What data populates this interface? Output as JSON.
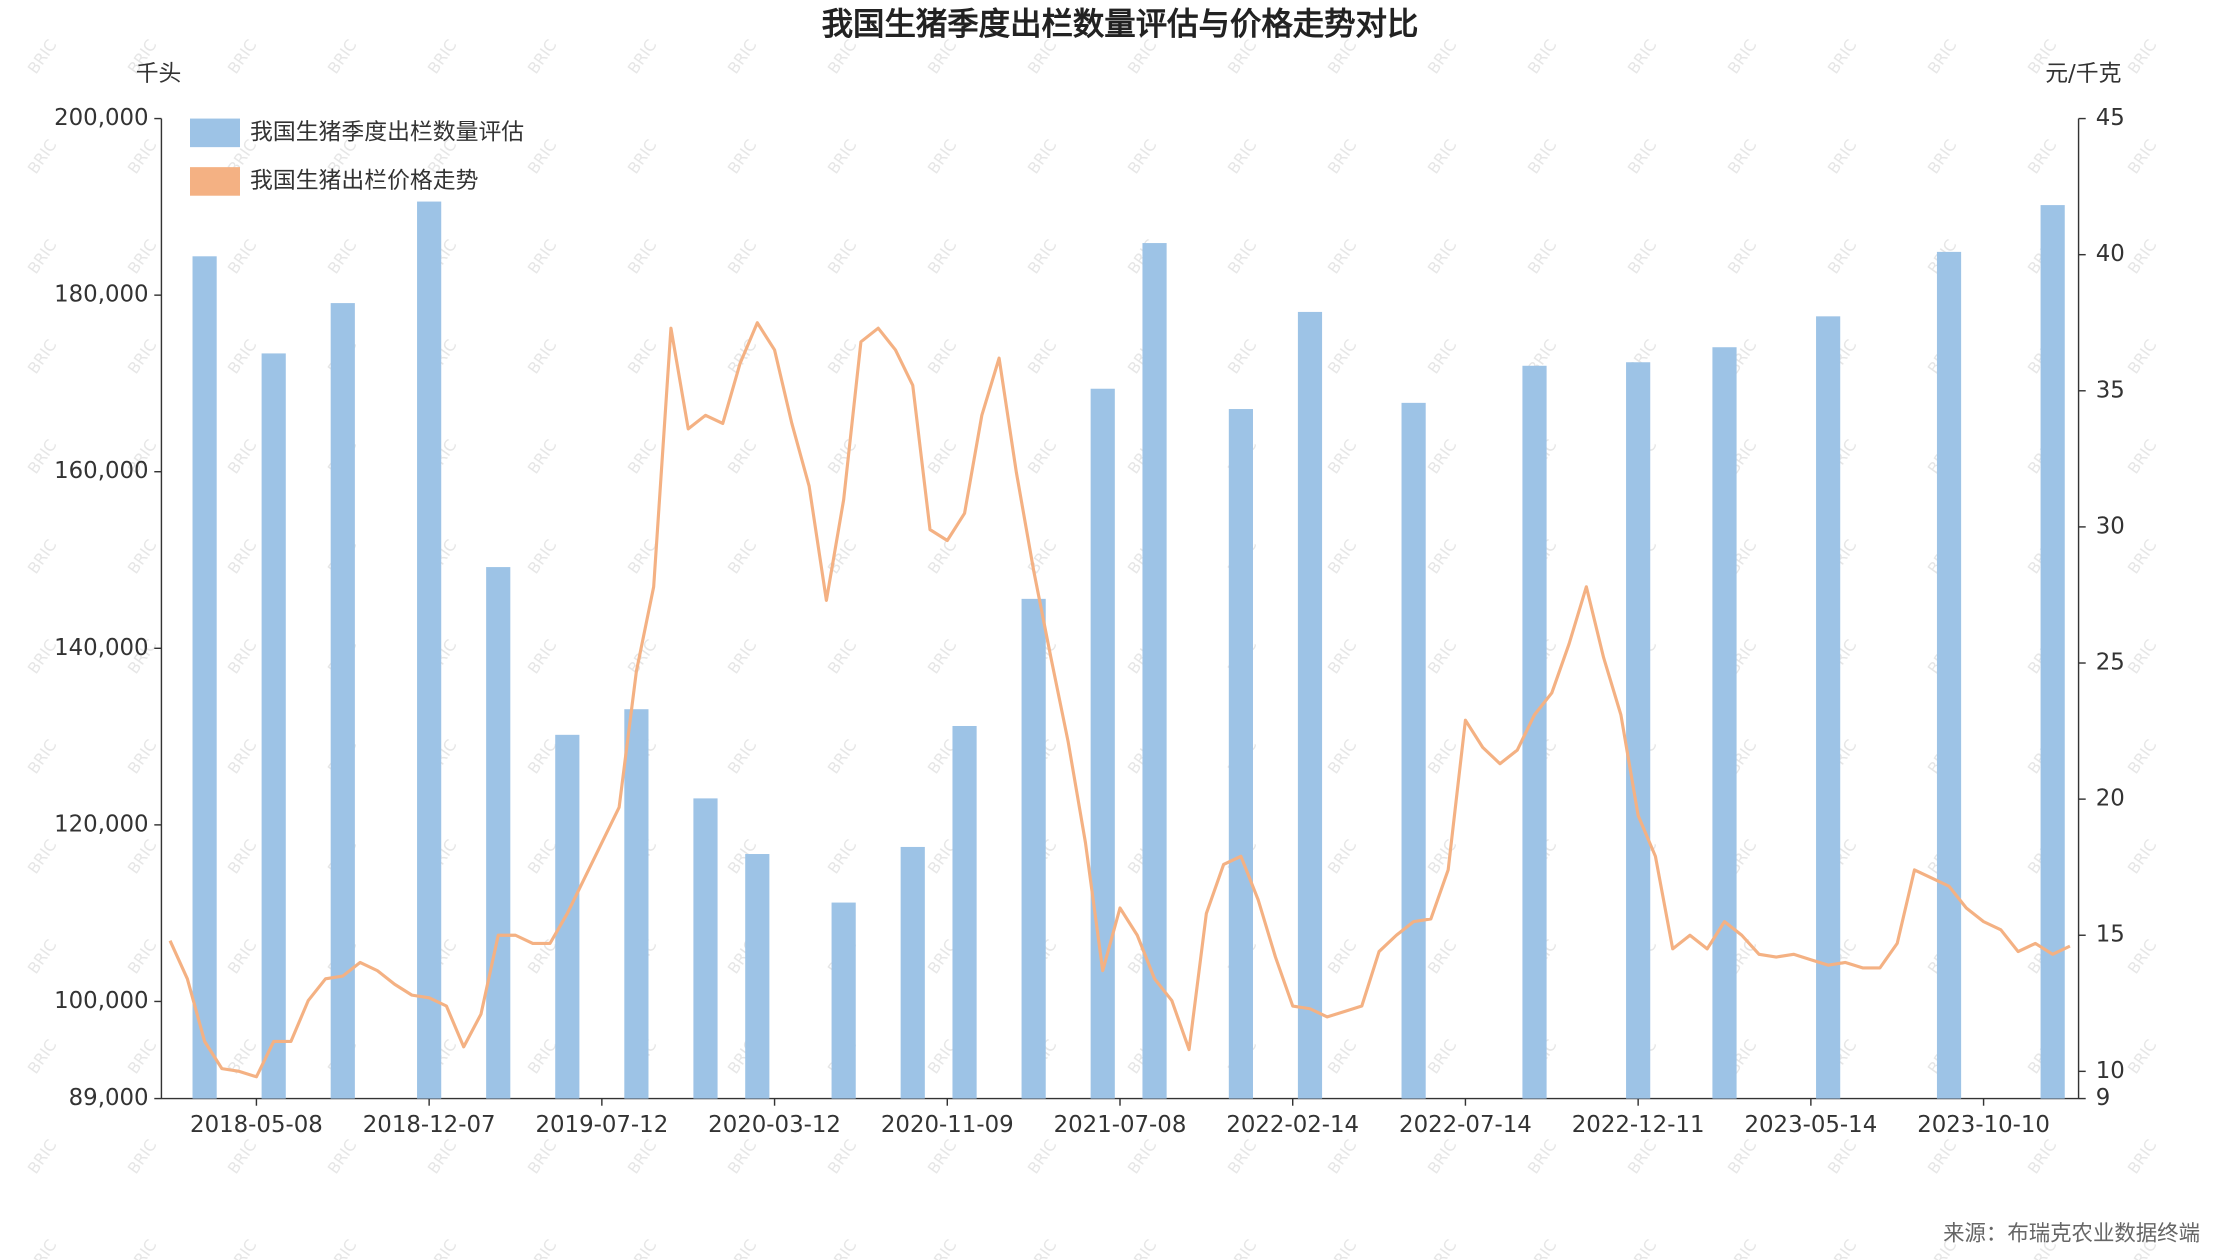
{
  "chart_data": {
    "type": "bar",
    "title": "我国生猪季度出栏数量评估与价格走势对比",
    "y_unit": "千头",
    "y2_unit": "元/千克",
    "source": "来源：布瑞克农业数据终端",
    "watermark": "BRIC",
    "legend_position": "top-left",
    "categories": [
      null,
      null,
      null,
      null,
      null,
      "2018-05-08",
      null,
      null,
      null,
      null,
      null,
      null,
      null,
      null,
      null,
      "2018-12-07",
      null,
      null,
      null,
      null,
      null,
      null,
      null,
      null,
      null,
      "2019-07-12",
      null,
      null,
      null,
      null,
      null,
      null,
      null,
      null,
      null,
      "2020-03-12",
      null,
      null,
      null,
      null,
      null,
      null,
      null,
      null,
      null,
      "2020-11-09",
      null,
      null,
      null,
      null,
      null,
      null,
      null,
      null,
      null,
      "2021-07-08",
      null,
      null,
      null,
      null,
      null,
      null,
      null,
      null,
      null,
      "2022-02-14",
      null,
      null,
      null,
      null,
      null,
      null,
      null,
      null,
      null,
      "2022-07-14",
      null,
      null,
      null,
      null,
      null,
      null,
      null,
      null,
      null,
      "2022-12-11",
      null,
      null,
      null,
      null,
      null,
      null,
      null,
      null,
      null,
      "2023-05-14",
      null,
      null,
      null,
      null,
      null,
      null,
      null,
      null,
      null,
      "2023-10-10",
      null,
      null,
      null,
      null,
      null
    ],
    "series": [
      {
        "name": "我国生猪季度出栏数量评估",
        "type": "bar",
        "color": "#9dc3e6",
        "values": [
          null,
          null,
          184400,
          null,
          null,
          null,
          173400,
          null,
          null,
          null,
          179100,
          null,
          null,
          null,
          null,
          190600,
          null,
          null,
          null,
          149200,
          null,
          null,
          null,
          130200,
          null,
          null,
          null,
          133100,
          null,
          null,
          null,
          123000,
          null,
          null,
          116700,
          null,
          null,
          null,
          null,
          111200,
          null,
          null,
          null,
          117500,
          null,
          null,
          131200,
          null,
          null,
          null,
          145600,
          null,
          null,
          null,
          169400,
          null,
          null,
          185900,
          null,
          null,
          null,
          null,
          167100,
          null,
          null,
          null,
          178100,
          null,
          null,
          null,
          null,
          null,
          167800,
          null,
          null,
          null,
          null,
          null,
          null,
          172000,
          null,
          null,
          null,
          null,
          null,
          172400,
          null,
          null,
          null,
          null,
          174100,
          null,
          null,
          null,
          null,
          null,
          177600,
          null,
          null,
          null,
          null,
          null,
          null,
          184900,
          null,
          null,
          null,
          null,
          null,
          190200,
          null
        ]
      },
      {
        "name": "我国生猪出栏价格走势",
        "type": "line",
        "axis": "y2",
        "color": "#f4b183",
        "values": [
          14.8,
          13.4,
          11.1,
          10.1,
          10.0,
          9.8,
          11.1,
          11.1,
          12.6,
          13.4,
          13.5,
          14.0,
          13.7,
          13.2,
          12.8,
          12.7,
          12.4,
          10.9,
          12.1,
          15.0,
          15.0,
          14.7,
          14.7,
          15.8,
          17.1,
          18.4,
          19.7,
          24.7,
          27.8,
          37.3,
          33.6,
          34.1,
          33.8,
          36.0,
          37.5,
          36.5,
          33.8,
          31.5,
          27.3,
          31.0,
          36.8,
          37.3,
          36.5,
          35.2,
          29.9,
          29.5,
          30.5,
          34.1,
          36.2,
          32.0,
          28.4,
          25.2,
          22.1,
          18.4,
          13.7,
          16.0,
          15.0,
          13.4,
          12.6,
          10.8,
          15.8,
          17.6,
          17.9,
          16.3,
          14.2,
          12.4,
          12.3,
          12.0,
          12.2,
          12.4,
          14.4,
          15.0,
          15.5,
          15.6,
          17.4,
          22.9,
          21.9,
          21.3,
          21.8,
          23.1,
          23.9,
          25.7,
          27.8,
          25.2,
          23.1,
          19.4,
          17.9,
          14.5,
          15.0,
          14.5,
          15.5,
          15.0,
          14.3,
          14.2,
          14.3,
          14.1,
          13.9,
          14.0,
          13.8,
          13.8,
          14.7,
          17.4,
          17.1,
          16.8,
          16.0,
          15.5,
          15.2,
          14.4,
          14.7,
          14.3,
          14.6
        ]
      }
    ],
    "ylim": [
      89000,
      200000
    ],
    "yticks": [
      {
        "value": 89000,
        "label": "89,000"
      },
      {
        "value": 100000,
        "label": "100,000"
      },
      {
        "value": 120000,
        "label": "120,000"
      },
      {
        "value": 140000,
        "label": "140,000"
      },
      {
        "value": 160000,
        "label": "160,000"
      },
      {
        "value": 180000,
        "label": "180,000"
      },
      {
        "value": 200000,
        "label": "200,000"
      }
    ],
    "y2lim": [
      9,
      45
    ],
    "y2ticks": [
      9,
      10,
      15,
      20,
      25,
      30,
      35,
      40,
      45
    ],
    "grid": false
  }
}
